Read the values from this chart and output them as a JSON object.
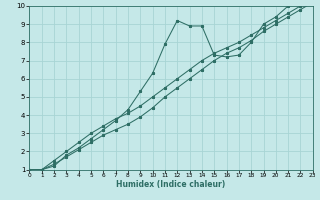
{
  "xlabel": "Humidex (Indice chaleur)",
  "xlim": [
    0,
    23
  ],
  "ylim": [
    1,
    10
  ],
  "xticks": [
    0,
    1,
    2,
    3,
    4,
    5,
    6,
    7,
    8,
    9,
    10,
    11,
    12,
    13,
    14,
    15,
    16,
    17,
    18,
    19,
    20,
    21,
    22,
    23
  ],
  "yticks": [
    1,
    2,
    3,
    4,
    5,
    6,
    7,
    8,
    9,
    10
  ],
  "bg_color": "#c5e8e8",
  "grid_color": "#a8d4d4",
  "line_color": "#2e6e65",
  "line1_x": [
    0,
    1,
    2,
    3,
    4,
    5,
    6,
    7,
    8,
    9,
    10,
    11,
    12,
    13,
    14,
    15,
    16,
    17,
    18,
    19,
    20,
    21,
    22,
    23
  ],
  "line1_y": [
    1.0,
    1.0,
    1.2,
    1.8,
    2.2,
    2.7,
    3.2,
    3.7,
    4.3,
    5.3,
    6.3,
    7.9,
    9.2,
    8.9,
    8.9,
    7.3,
    7.2,
    7.3,
    8.0,
    9.0,
    9.4,
    10.0,
    10.2,
    10.3
  ],
  "line2_x": [
    0,
    1,
    2,
    3,
    4,
    5,
    6,
    7,
    8,
    9,
    10,
    11,
    12,
    13,
    14,
    15,
    16,
    17,
    18,
    19,
    20,
    21,
    22,
    23
  ],
  "line2_y": [
    1.0,
    1.0,
    1.3,
    1.7,
    2.1,
    2.5,
    2.9,
    3.2,
    3.5,
    3.9,
    4.4,
    5.0,
    5.5,
    6.0,
    6.5,
    7.0,
    7.4,
    7.7,
    8.1,
    8.6,
    9.0,
    9.4,
    9.8,
    10.2
  ],
  "line3_x": [
    0,
    1,
    2,
    3,
    4,
    5,
    6,
    7,
    8,
    9,
    10,
    11,
    12,
    13,
    14,
    15,
    16,
    17,
    18,
    19,
    20,
    21,
    22,
    23
  ],
  "line3_y": [
    1.0,
    1.0,
    1.5,
    2.0,
    2.5,
    3.0,
    3.4,
    3.8,
    4.1,
    4.5,
    5.0,
    5.5,
    6.0,
    6.5,
    7.0,
    7.4,
    7.7,
    8.0,
    8.4,
    8.8,
    9.2,
    9.6,
    10.0,
    10.3
  ]
}
